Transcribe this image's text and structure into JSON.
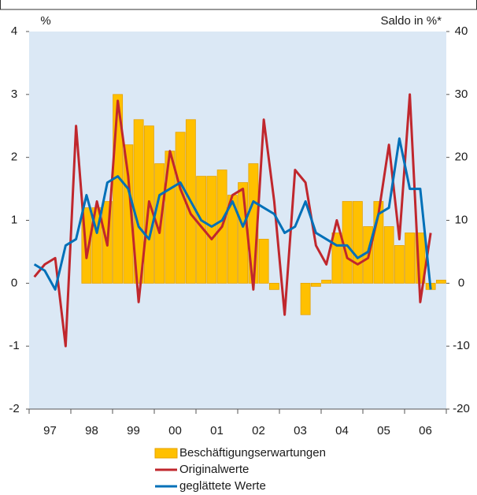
{
  "chart_data": {
    "type": "bar",
    "y_label": "%",
    "y2_label": "Saldo in %*",
    "categories": [
      null,
      "97",
      null,
      null,
      null,
      "98",
      null,
      null,
      null,
      "99",
      null,
      null,
      null,
      "00",
      null,
      null,
      null,
      "01",
      null,
      null,
      null,
      "02",
      null,
      null,
      null,
      "03",
      null,
      null,
      null,
      "04",
      null,
      null,
      null,
      "05",
      null,
      null,
      null,
      "06",
      null,
      null
    ],
    "ylim": [
      -2,
      4
    ],
    "yticks": [
      -2,
      -1,
      0,
      1,
      2,
      3,
      4
    ],
    "y2lim": [
      -20,
      40
    ],
    "y2ticks": [
      -20,
      -10,
      0,
      10,
      20,
      30,
      40
    ],
    "series": [
      {
        "name": "Beschäftigungserwartungen",
        "type": "bar",
        "color": "#ffc000",
        "axis": "y",
        "values": [
          null,
          null,
          null,
          null,
          null,
          1.2,
          1.2,
          1.3,
          3.0,
          2.2,
          2.6,
          2.5,
          1.9,
          2.1,
          2.4,
          2.6,
          1.7,
          1.7,
          1.8,
          1.4,
          1.6,
          1.9,
          0.7,
          -0.1,
          0,
          0,
          -0.5,
          -0.05,
          0.05,
          0.8,
          1.3,
          1.3,
          0.9,
          1.3,
          0.9,
          0.6,
          0.8,
          0.8,
          -0.1,
          0.05
        ]
      },
      {
        "name": "Originalwerte",
        "type": "line",
        "color": "#c0272d",
        "axis": "y2",
        "values": [
          1,
          3,
          4,
          -10,
          25,
          4,
          13,
          6,
          29,
          17,
          -3,
          13,
          8,
          21,
          15,
          11,
          9,
          7,
          9,
          14,
          15,
          -1,
          26,
          13,
          -5,
          18,
          16,
          6,
          3,
          10,
          4,
          3,
          4,
          11,
          22,
          7,
          30,
          -3,
          8,
          null
        ]
      },
      {
        "name": "geglättete Werte",
        "type": "line",
        "color": "#0070b8",
        "axis": "y2",
        "values": [
          3,
          2,
          -1,
          6,
          7,
          14,
          8,
          16,
          17,
          15,
          9,
          7,
          14,
          15,
          16,
          13,
          10,
          9,
          10,
          13,
          9,
          13,
          12,
          11,
          8,
          9,
          13,
          8,
          7,
          6,
          6,
          4,
          5,
          11,
          12,
          23,
          15,
          15,
          -1,
          null
        ]
      }
    ]
  }
}
